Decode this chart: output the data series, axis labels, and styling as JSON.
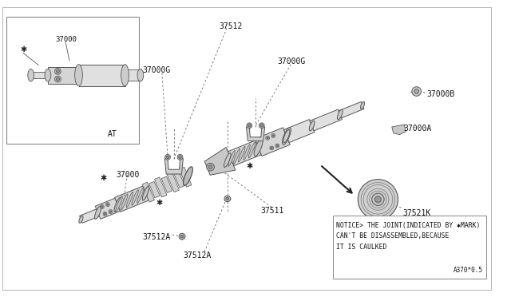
{
  "bg_color": "#ffffff",
  "line_color": "#444444",
  "text_color": "#111111",
  "notice_text_lines": [
    "NOTICE> THE JOINT(INDICATED BY ✱MARK)",
    "CAN'T BE DISASSEMBLED,BECAUSE",
    "IT IS CAULKED"
  ],
  "ref_code": "A370*0.5",
  "figsize": [
    6.4,
    3.72
  ],
  "dpi": 100
}
